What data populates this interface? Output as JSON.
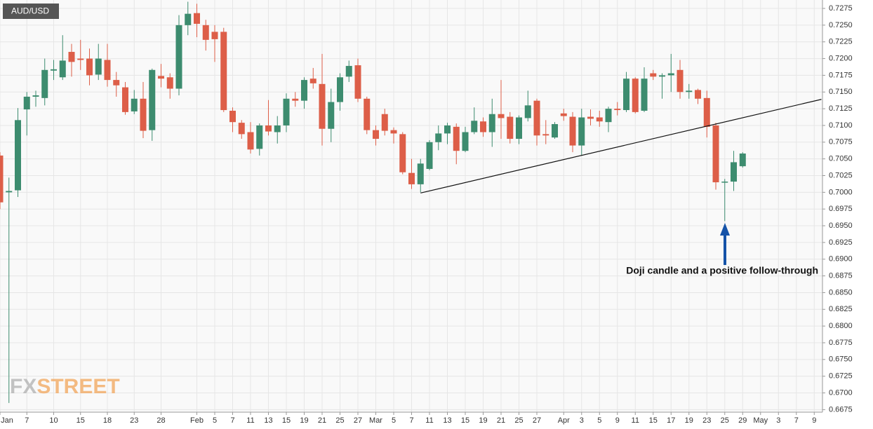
{
  "chart_data": {
    "type": "candlestick",
    "title": "AUD/USD",
    "annotation": "Doji candle and a positive follow-through",
    "logo": {
      "fx": "FX",
      "street": "STREET"
    },
    "up_color": "#3d8c6f",
    "down_color": "#dd5e48",
    "grid": true,
    "x": [
      0,
      1,
      2,
      3,
      4,
      5,
      6,
      7,
      8,
      9,
      10,
      11,
      12,
      13,
      14,
      15,
      16,
      17,
      18,
      19,
      20,
      21,
      22,
      23,
      24,
      25,
      26,
      27,
      28,
      29,
      30,
      31,
      32,
      33,
      34,
      35,
      36,
      37,
      38,
      39,
      40,
      41,
      42,
      43,
      44,
      45,
      46,
      47,
      48,
      49,
      50,
      51,
      52,
      53,
      54,
      55,
      56,
      57,
      58,
      59,
      60,
      61,
      62,
      63,
      64,
      65,
      66,
      67,
      68,
      69,
      70,
      71,
      72,
      73,
      74,
      75,
      76,
      77,
      78,
      79,
      80,
      81,
      82,
      83
    ],
    "open": [
      0.7055,
      0.7,
      0.7003,
      0.7124,
      0.7143,
      0.7141,
      0.7182,
      0.7172,
      0.721,
      0.72,
      0.72,
      0.7176,
      0.7198,
      0.7168,
      0.7157,
      0.7121,
      0.714,
      0.7093,
      0.7174,
      0.7172,
      0.7155,
      0.725,
      0.7268,
      0.725,
      0.724,
      0.724,
      0.7122,
      0.7104,
      0.709,
      0.7065,
      0.71,
      0.709,
      0.71,
      0.714,
      0.7137,
      0.717,
      0.7162,
      0.7095,
      0.7135,
      0.7173,
      0.719,
      0.714,
      0.7093,
      0.7117,
      0.7093,
      0.7087,
      0.7029,
      0.7012,
      0.7035,
      0.7075,
      0.7088,
      0.7098,
      0.7062,
      0.709,
      0.7106,
      0.709,
      0.7117,
      0.7113,
      0.708,
      0.7111,
      0.7137,
      0.7087,
      0.7082,
      0.7118,
      0.7113,
      0.707,
      0.7113,
      0.7112,
      0.7105,
      0.7125,
      0.7123,
      0.717,
      0.7122,
      0.7178,
      0.7173,
      0.7175,
      0.7183,
      0.715,
      0.7153,
      0.7141,
      0.71,
      0.7015,
      0.7016,
      0.7039
    ],
    "high": [
      0.706,
      0.7022,
      0.7126,
      0.715,
      0.7152,
      0.72,
      0.7198,
      0.7235,
      0.7222,
      0.7228,
      0.7215,
      0.7222,
      0.7222,
      0.718,
      0.7165,
      0.7153,
      0.7165,
      0.7185,
      0.7192,
      0.7178,
      0.7265,
      0.7285,
      0.7282,
      0.7258,
      0.725,
      0.7246,
      0.7127,
      0.7108,
      0.7105,
      0.7103,
      0.7138,
      0.7114,
      0.7148,
      0.715,
      0.7172,
      0.7186,
      0.7207,
      0.7155,
      0.7178,
      0.7197,
      0.72,
      0.7143,
      0.71,
      0.7125,
      0.7097,
      0.709,
      0.705,
      0.705,
      0.7078,
      0.71,
      0.7104,
      0.7103,
      0.7098,
      0.7127,
      0.7112,
      0.714,
      0.7168,
      0.712,
      0.7115,
      0.7152,
      0.714,
      0.7108,
      0.7105,
      0.7125,
      0.712,
      0.7125,
      0.7124,
      0.7122,
      0.7128,
      0.7135,
      0.718,
      0.7172,
      0.7187,
      0.7183,
      0.7178,
      0.7207,
      0.7198,
      0.7162,
      0.7155,
      0.7152,
      0.7104,
      0.702,
      0.7062,
      0.706
    ],
    "low": [
      0.6975,
      0.6685,
      0.6993,
      0.7085,
      0.7128,
      0.713,
      0.7168,
      0.7168,
      0.7173,
      0.7183,
      0.716,
      0.7168,
      0.7158,
      0.7143,
      0.7116,
      0.7117,
      0.7081,
      0.7077,
      0.7157,
      0.714,
      0.7145,
      0.7235,
      0.7232,
      0.7212,
      0.7195,
      0.712,
      0.709,
      0.708,
      0.7058,
      0.7055,
      0.7085,
      0.7073,
      0.709,
      0.7128,
      0.7125,
      0.7155,
      0.707,
      0.7075,
      0.7122,
      0.7165,
      0.7135,
      0.7087,
      0.707,
      0.7085,
      0.7073,
      0.7027,
      0.7005,
      0.7,
      0.7033,
      0.7063,
      0.7072,
      0.7042,
      0.706,
      0.7087,
      0.7083,
      0.7068,
      0.708,
      0.7073,
      0.7072,
      0.7106,
      0.707,
      0.7072,
      0.708,
      0.7107,
      0.706,
      0.7055,
      0.71,
      0.7098,
      0.709,
      0.7115,
      0.712,
      0.7118,
      0.712,
      0.7168,
      0.714,
      0.715,
      0.714,
      0.714,
      0.7132,
      0.7082,
      0.7004,
      0.6957,
      0.7002,
      0.7037
    ],
    "close": [
      0.6985,
      0.7002,
      0.7108,
      0.7143,
      0.7145,
      0.7183,
      0.7184,
      0.7197,
      0.7195,
      0.7198,
      0.7175,
      0.72,
      0.7168,
      0.716,
      0.712,
      0.714,
      0.7092,
      0.7183,
      0.717,
      0.7155,
      0.725,
      0.7267,
      0.7252,
      0.7228,
      0.7229,
      0.7123,
      0.7105,
      0.7087,
      0.7064,
      0.71,
      0.7091,
      0.71,
      0.714,
      0.7137,
      0.7168,
      0.7163,
      0.7095,
      0.7135,
      0.7172,
      0.7189,
      0.714,
      0.7093,
      0.708,
      0.7092,
      0.7088,
      0.703,
      0.7012,
      0.7043,
      0.7075,
      0.7088,
      0.71,
      0.7062,
      0.709,
      0.7107,
      0.709,
      0.7117,
      0.7111,
      0.708,
      0.7112,
      0.713,
      0.7085,
      0.7085,
      0.7102,
      0.7114,
      0.707,
      0.7112,
      0.711,
      0.7106,
      0.7125,
      0.7123,
      0.717,
      0.712,
      0.717,
      0.7173,
      0.7175,
      0.7178,
      0.715,
      0.7152,
      0.714,
      0.7098,
      0.7015,
      0.7016,
      0.7045,
      0.7058
    ],
    "trendline": {
      "x": [
        47,
        91.8
      ],
      "y": [
        0.6999,
        0.7139
      ]
    },
    "xlim": [
      0,
      91.92
    ],
    "ylim": [
      0.66712,
      0.72876
    ],
    "xticks": [
      {
        "value": 0,
        "label": "Jan"
      },
      {
        "value": 3,
        "label": "7"
      },
      {
        "value": 6,
        "label": "10"
      },
      {
        "value": 9,
        "label": "15"
      },
      {
        "value": 12,
        "label": "18"
      },
      {
        "value": 15,
        "label": "23"
      },
      {
        "value": 18,
        "label": "28"
      },
      {
        "value": 22,
        "label": "Feb"
      },
      {
        "value": 24,
        "label": "5"
      },
      {
        "value": 26,
        "label": "7"
      },
      {
        "value": 28,
        "label": "11"
      },
      {
        "value": 30,
        "label": "13"
      },
      {
        "value": 32,
        "label": "15"
      },
      {
        "value": 34,
        "label": "19"
      },
      {
        "value": 36,
        "label": "21"
      },
      {
        "value": 38,
        "label": "25"
      },
      {
        "value": 40,
        "label": "27"
      },
      {
        "value": 42,
        "label": "Mar"
      },
      {
        "value": 44,
        "label": "5"
      },
      {
        "value": 46,
        "label": "7"
      },
      {
        "value": 48,
        "label": "11"
      },
      {
        "value": 50,
        "label": "13"
      },
      {
        "value": 52,
        "label": "15"
      },
      {
        "value": 54,
        "label": "19"
      },
      {
        "value": 56,
        "label": "21"
      },
      {
        "value": 58,
        "label": "25"
      },
      {
        "value": 60,
        "label": "27"
      },
      {
        "value": 63,
        "label": "Apr"
      },
      {
        "value": 65,
        "label": "3"
      },
      {
        "value": 67,
        "label": "5"
      },
      {
        "value": 69,
        "label": "9"
      },
      {
        "value": 71,
        "label": "11"
      },
      {
        "value": 73,
        "label": "15"
      },
      {
        "value": 75,
        "label": "17"
      },
      {
        "value": 77,
        "label": "19"
      },
      {
        "value": 79,
        "label": "23"
      },
      {
        "value": 81,
        "label": "25"
      },
      {
        "value": 83,
        "label": "29"
      },
      {
        "value": 85,
        "label": "May"
      },
      {
        "value": 87,
        "label": "3"
      },
      {
        "value": 89,
        "label": "7"
      },
      {
        "value": 91,
        "label": "9"
      }
    ],
    "yticks": [
      {
        "value": 0.67,
        "label": "0.6700"
      },
      0.6675,
      0.6725,
      {
        "value": 0.675,
        "label": "0.6750"
      },
      0.6775,
      {
        "value": 0.68,
        "label": "0.6800"
      },
      0.6825,
      {
        "value": 0.685,
        "label": "0.6850"
      },
      0.6875,
      {
        "value": 0.69,
        "label": "0.6900"
      },
      0.6925,
      {
        "value": 0.695,
        "label": "0.6950"
      },
      0.6975,
      {
        "value": 0.7,
        "label": "0.7000"
      },
      0.7025,
      {
        "value": 0.705,
        "label": "0.7050"
      },
      0.7075,
      {
        "value": 0.71,
        "label": "0.7100"
      },
      0.7125,
      {
        "value": 0.715,
        "label": "0.7150"
      },
      0.7175,
      {
        "value": 0.72,
        "label": "0.7200"
      },
      0.7225,
      {
        "value": 0.725,
        "label": "0.7250"
      },
      0.7275
    ]
  }
}
